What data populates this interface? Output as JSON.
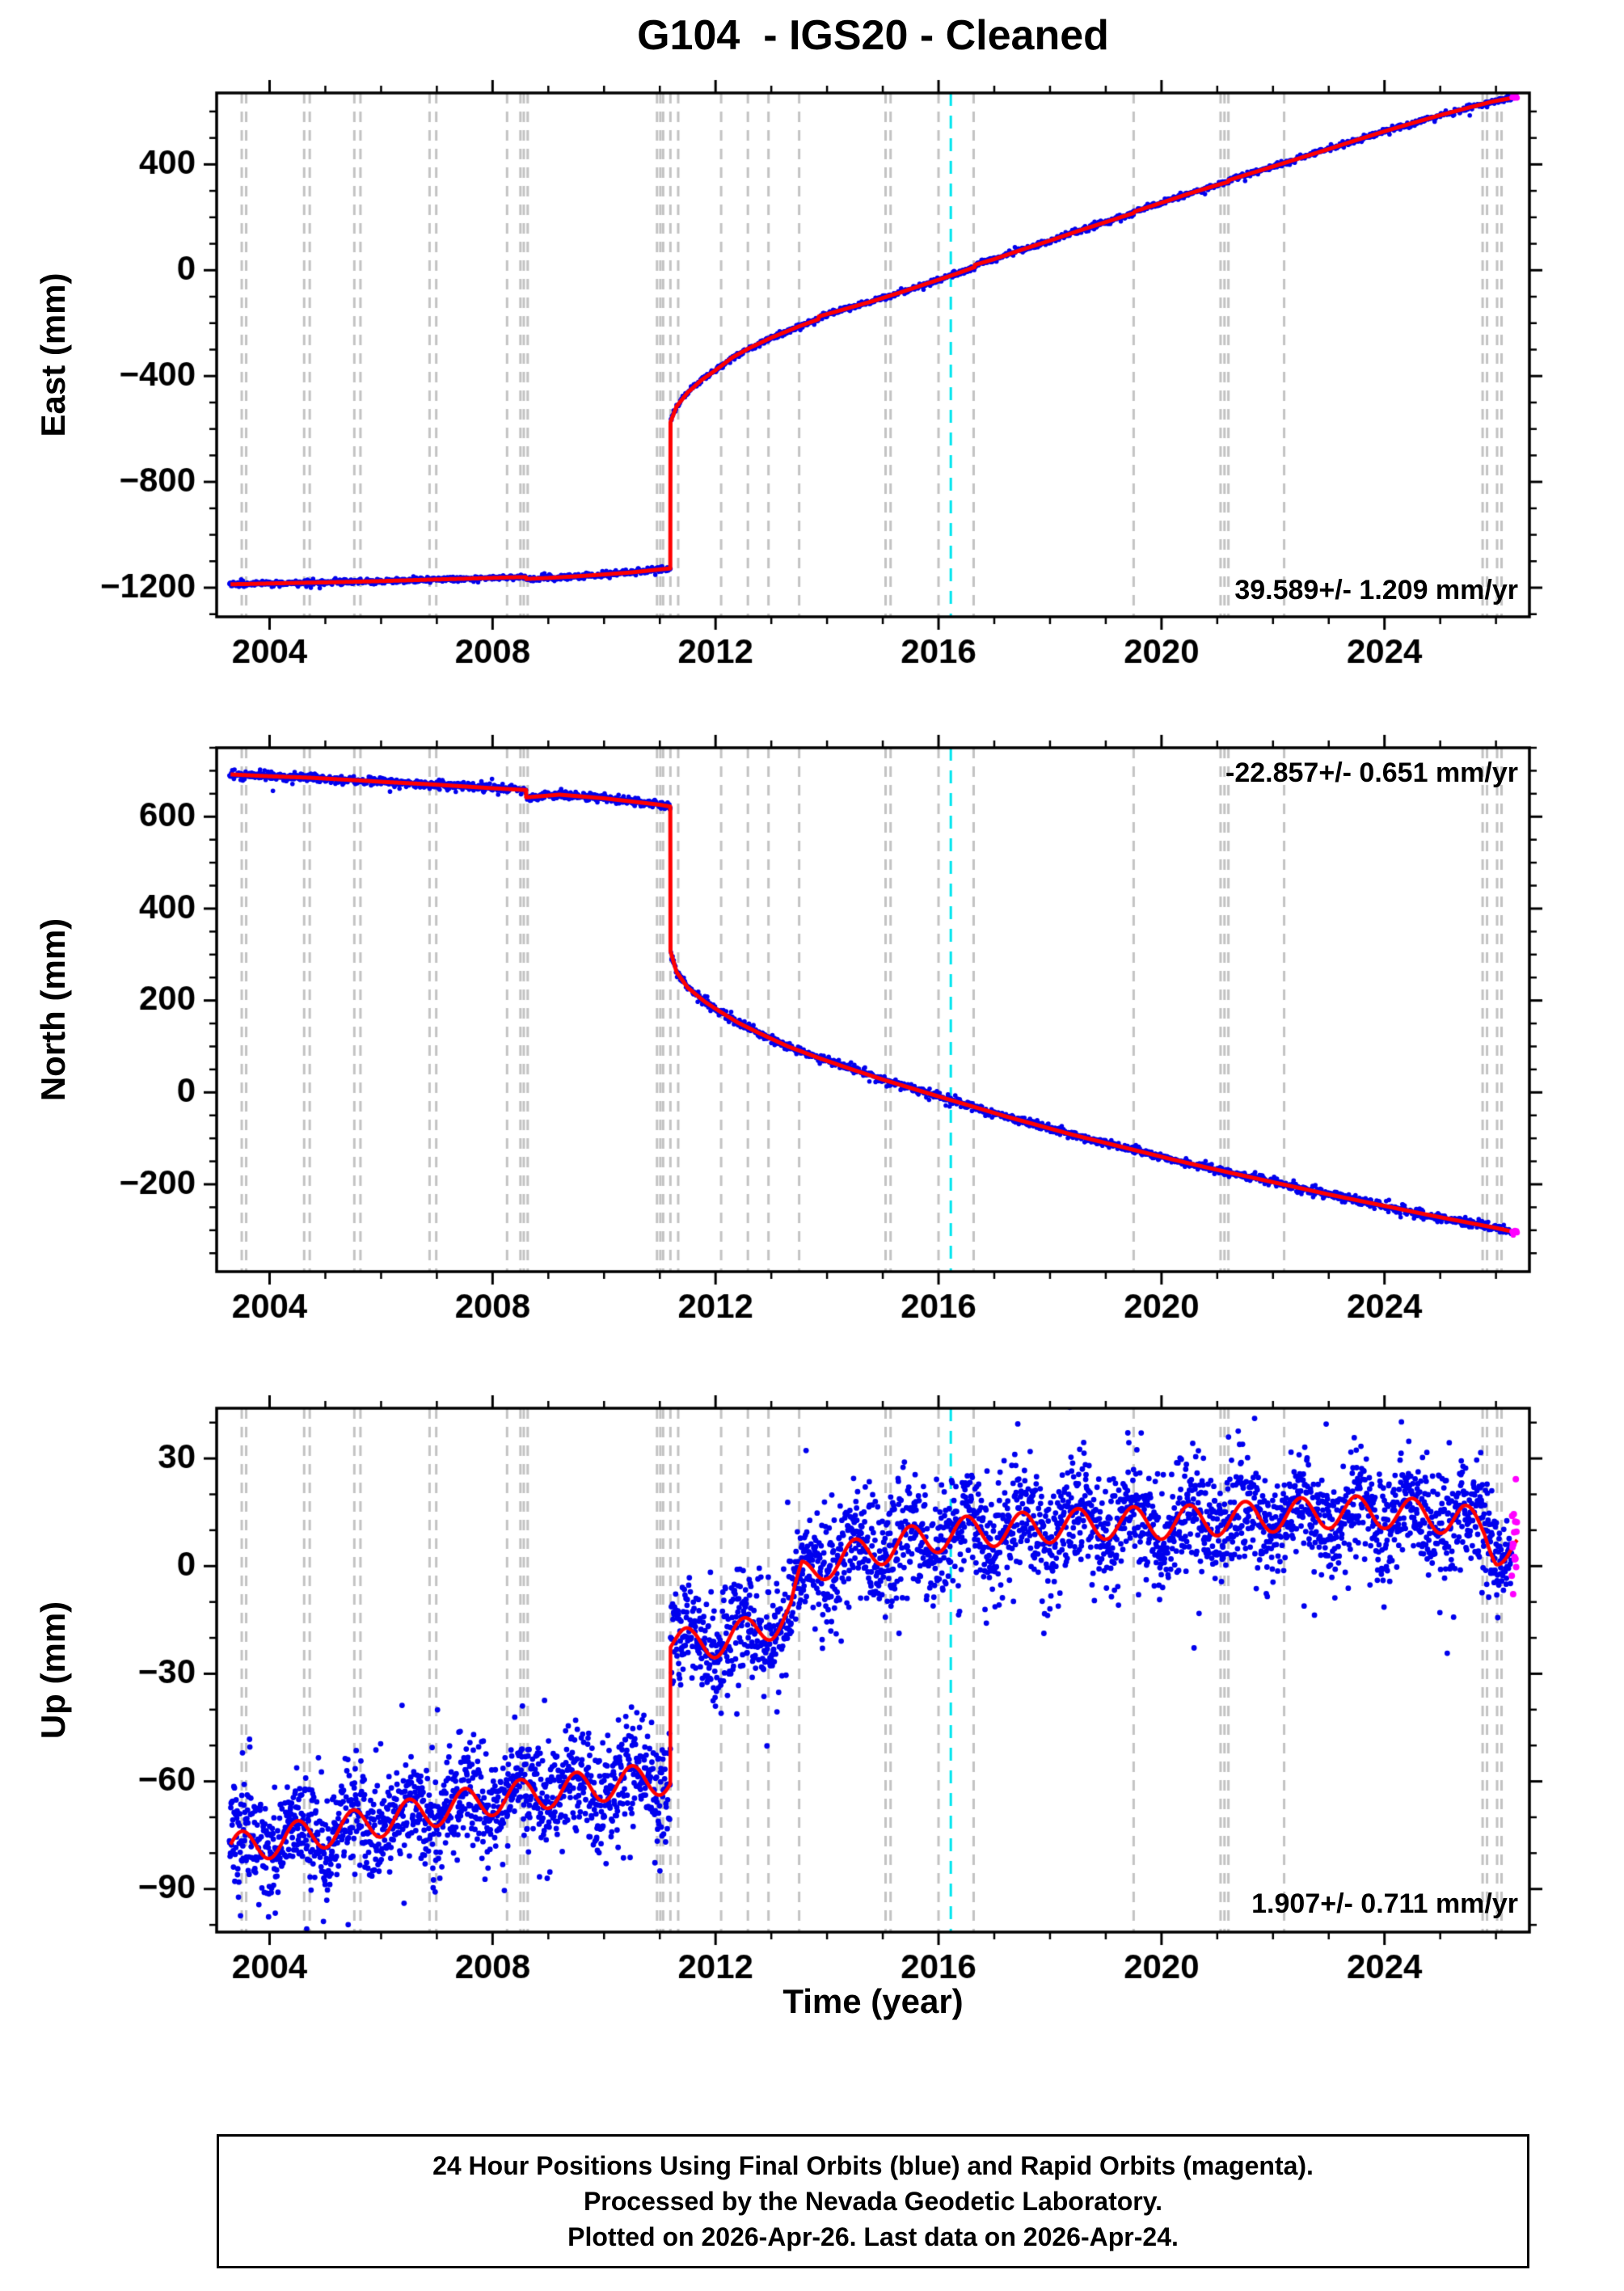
{
  "chart_data": {
    "type": "line",
    "title": "G104  - IGS20 - Cleaned",
    "xlabel": "Time (year)",
    "x_range": [
      2003.05,
      2026.6
    ],
    "x_major_ticks": [
      2004,
      2008,
      2012,
      2016,
      2020,
      2024
    ],
    "x_minor_step": 1,
    "data_range": [
      2003.28,
      2026.38
    ],
    "rapid_orbit_start": 2026.28,
    "colors": {
      "final_orbits": "#0000EE",
      "rapid_orbits": "#FF00FF",
      "model_line": "#FF0000",
      "event_lines": "#C3C3C3",
      "special_event_line": "#00E5EE",
      "frame": "#000000"
    },
    "event_lines": [
      2003.5,
      2003.58,
      2004.62,
      2004.72,
      2005.52,
      2005.63,
      2006.87,
      2006.99,
      2008.26,
      2008.5,
      2008.56,
      2008.63,
      2010.95,
      2011.01,
      2011.06,
      2011.19,
      2011.33,
      2012.1,
      2012.58,
      2012.95,
      2013.5,
      2015.05,
      2015.14,
      2016.0,
      2016.63,
      2019.5,
      2021.06,
      2021.13,
      2021.2,
      2022.2,
      2025.76,
      2025.84,
      2026.02,
      2026.1
    ],
    "special_event_line": 2016.22,
    "panels": [
      {
        "name": "east",
        "ylabel": "East (mm)",
        "ylim": [
          -1310,
          670
        ],
        "y_major_ticks": [
          -1200,
          -800,
          -400,
          0,
          400
        ],
        "y_minor_step": 100,
        "rate_label": "39.589+/- 1.209 mm/yr",
        "rate_label_corner": "bottom-right",
        "noise_sigma_mm": 5,
        "seasonal_amplitude_mm": 0,
        "dot_radius_px": 2.8,
        "sample_step_yr": 0.01,
        "model": [
          [
            2003.3,
            -1187
          ],
          [
            2003.6,
            -1186
          ],
          [
            2004.0,
            -1184
          ],
          [
            2004.7,
            -1181
          ],
          [
            2005.0,
            -1180
          ],
          [
            2005.6,
            -1177
          ],
          [
            2006.0,
            -1175
          ],
          [
            2006.95,
            -1169
          ],
          [
            2007.5,
            -1166
          ],
          [
            2008.0,
            -1163
          ],
          [
            2008.3,
            -1161
          ],
          [
            2008.6,
            -1160
          ],
          [
            2008.6,
            -1167
          ],
          [
            2009.0,
            -1163
          ],
          [
            2009.5,
            -1157
          ],
          [
            2010.0,
            -1150
          ],
          [
            2010.5,
            -1142
          ],
          [
            2011.0,
            -1131
          ],
          [
            2011.19,
            -1127
          ],
          [
            2011.19,
            -575
          ],
          [
            2011.3,
            -515
          ],
          [
            2011.5,
            -462
          ],
          [
            2011.75,
            -415
          ],
          [
            2012.0,
            -378
          ],
          [
            2012.3,
            -330
          ],
          [
            2012.6,
            -295
          ],
          [
            2013.0,
            -255
          ],
          [
            2013.5,
            -212
          ],
          [
            2013.85,
            -185
          ],
          [
            2013.85,
            -175
          ],
          [
            2014.3,
            -148
          ],
          [
            2014.8,
            -118
          ],
          [
            2015.3,
            -85
          ],
          [
            2015.8,
            -50
          ],
          [
            2016.3,
            -15
          ],
          [
            2016.65,
            12
          ],
          [
            2016.65,
            20
          ],
          [
            2017.0,
            42
          ],
          [
            2017.5,
            78
          ],
          [
            2018.0,
            112
          ],
          [
            2018.5,
            148
          ],
          [
            2019.0,
            182
          ],
          [
            2019.5,
            216
          ],
          [
            2019.52,
            222
          ],
          [
            2020.0,
            255
          ],
          [
            2020.5,
            290
          ],
          [
            2021.0,
            322
          ],
          [
            2021.2,
            334
          ],
          [
            2021.2,
            340
          ],
          [
            2021.6,
            366
          ],
          [
            2022.0,
            392
          ],
          [
            2022.5,
            425
          ],
          [
            2023.0,
            458
          ],
          [
            2023.5,
            492
          ],
          [
            2024.0,
            525
          ],
          [
            2024.5,
            556
          ],
          [
            2025.0,
            586
          ],
          [
            2025.5,
            614
          ],
          [
            2025.95,
            638
          ],
          [
            2026.38,
            655
          ]
        ]
      },
      {
        "name": "north",
        "ylabel": "North (mm)",
        "ylim": [
          -390,
          750
        ],
        "y_major_ticks": [
          -200,
          0,
          200,
          400,
          600
        ],
        "y_minor_step": 50,
        "rate_label": "-22.857+/- 0.651 mm/yr",
        "rate_label_corner": "top-right",
        "noise_sigma_mm": 4.5,
        "seasonal_amplitude_mm": 0,
        "dot_radius_px": 2.8,
        "sample_step_yr": 0.01,
        "model": [
          [
            2003.3,
            692
          ],
          [
            2004.0,
            688
          ],
          [
            2004.7,
            685
          ],
          [
            2005.6,
            679
          ],
          [
            2006.0,
            676
          ],
          [
            2006.95,
            670
          ],
          [
            2008.0,
            662
          ],
          [
            2008.6,
            658
          ],
          [
            2008.6,
            642
          ],
          [
            2009.2,
            648
          ],
          [
            2010.0,
            640
          ],
          [
            2011.0,
            626
          ],
          [
            2011.19,
            622
          ],
          [
            2011.19,
            308
          ],
          [
            2011.3,
            262
          ],
          [
            2011.5,
            228
          ],
          [
            2011.8,
            198
          ],
          [
            2012.0,
            182
          ],
          [
            2012.4,
            152
          ],
          [
            2012.8,
            128
          ],
          [
            2013.3,
            100
          ],
          [
            2013.85,
            75
          ],
          [
            2014.4,
            52
          ],
          [
            2015.0,
            28
          ],
          [
            2015.6,
            6
          ],
          [
            2016.2,
            -16
          ],
          [
            2016.65,
            -32
          ],
          [
            2017.2,
            -52
          ],
          [
            2017.8,
            -72
          ],
          [
            2018.4,
            -92
          ],
          [
            2019.0,
            -110
          ],
          [
            2019.6,
            -128
          ],
          [
            2020.2,
            -146
          ],
          [
            2020.8,
            -163
          ],
          [
            2021.2,
            -174
          ],
          [
            2021.8,
            -190
          ],
          [
            2022.4,
            -206
          ],
          [
            2023.0,
            -222
          ],
          [
            2023.6,
            -237
          ],
          [
            2024.2,
            -252
          ],
          [
            2024.8,
            -267
          ],
          [
            2025.4,
            -281
          ],
          [
            2026.0,
            -295
          ],
          [
            2026.38,
            -305
          ]
        ]
      },
      {
        "name": "up",
        "ylabel": "Up (mm)",
        "ylim": [
          -102,
          44
        ],
        "y_major_ticks": [
          -90,
          -60,
          -30,
          0,
          30
        ],
        "y_minor_step": 10,
        "rate_label": "1.907+/- 0.711 mm/yr",
        "rate_label_corner": "bottom-right",
        "noise_sigma_mm": 7.5,
        "seasonal_amplitude_mm": 4.5,
        "dot_radius_px": 3.4,
        "sample_step_yr": 0.006,
        "model": [
          [
            2003.3,
            -79
          ],
          [
            2004.0,
            -77
          ],
          [
            2005.0,
            -74
          ],
          [
            2006.0,
            -71
          ],
          [
            2007.0,
            -68
          ],
          [
            2008.0,
            -65
          ],
          [
            2009.0,
            -63
          ],
          [
            2010.0,
            -61
          ],
          [
            2011.19,
            -59
          ],
          [
            2011.19,
            -21
          ],
          [
            2011.6,
            -22
          ],
          [
            2012.0,
            -21
          ],
          [
            2012.5,
            -19
          ],
          [
            2013.0,
            -16
          ],
          [
            2013.35,
            -13
          ],
          [
            2013.55,
            -3
          ],
          [
            2014.0,
            1
          ],
          [
            2014.5,
            3
          ],
          [
            2015.0,
            5
          ],
          [
            2015.6,
            7
          ],
          [
            2016.2,
            9
          ],
          [
            2017.0,
            10
          ],
          [
            2018.0,
            11
          ],
          [
            2019.0,
            12
          ],
          [
            2020.0,
            12
          ],
          [
            2021.0,
            13
          ],
          [
            2022.0,
            14
          ],
          [
            2023.0,
            15
          ],
          [
            2024.0,
            15
          ],
          [
            2024.8,
            14
          ],
          [
            2025.4,
            13
          ],
          [
            2025.8,
            10
          ],
          [
            2026.0,
            5
          ],
          [
            2026.2,
            4
          ],
          [
            2026.38,
            4
          ]
        ]
      }
    ],
    "footer_lines": [
      "24 Hour Positions Using Final Orbits (blue) and Rapid Orbits (magenta).",
      "Processed by the Nevada Geodetic Laboratory.",
      "Plotted on 2026-Apr-26. Last data on 2026-Apr-24."
    ]
  }
}
